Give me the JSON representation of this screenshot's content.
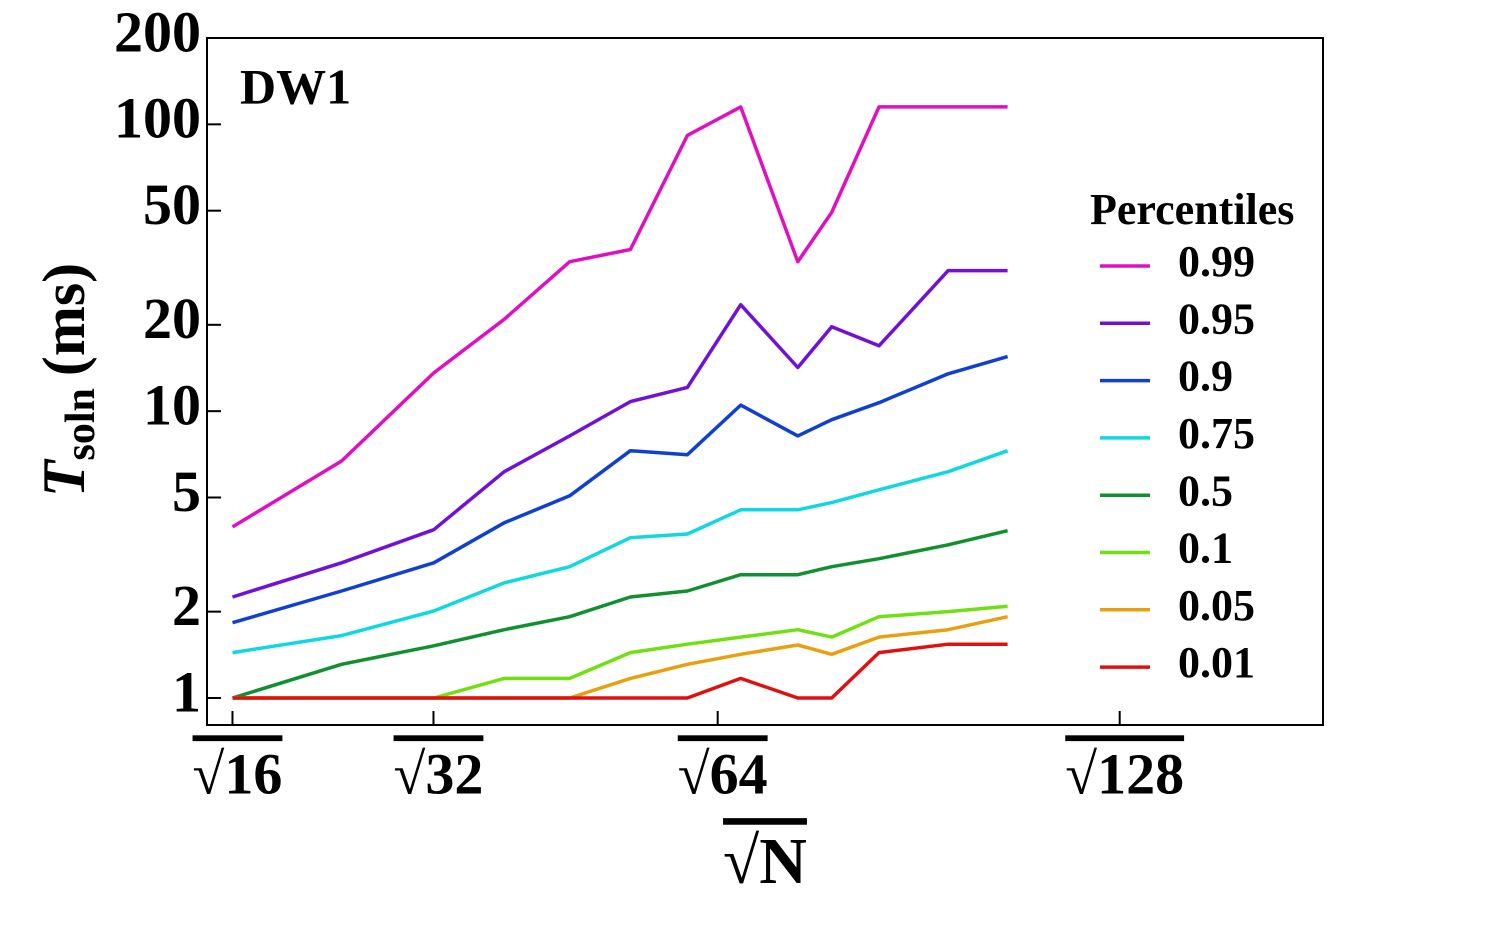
{
  "chart_data": {
    "type": "line",
    "annotation": "DW1",
    "ylabel": [
      "T",
      "soln",
      "(ms)"
    ],
    "xlabel": "√N",
    "legend_title": "Percentiles",
    "legend_position": "right",
    "log_y": true,
    "x": [
      4,
      4.9,
      5.66,
      6.24,
      6.78,
      7.28,
      7.75,
      8.19,
      8.66,
      8.94,
      9.33,
      9.9,
      10.39
    ],
    "xlim": [
      3.79,
      12.99
    ],
    "xticks": [
      {
        "value": 4,
        "label": "√16"
      },
      {
        "value": 5.657,
        "label": "√32"
      },
      {
        "value": 8,
        "label": "√64"
      },
      {
        "value": 11.314,
        "label": "√128"
      }
    ],
    "ylim": [
      0.805,
      200
    ],
    "yticks": [
      1,
      2,
      5,
      10,
      20,
      50,
      100,
      200
    ],
    "series": [
      {
        "name": "0.99",
        "color": "#e010c0",
        "values": [
          3.95,
          6.7,
          13.6,
          20.9,
          33.2,
          36.6,
          91.5,
          115,
          33.2,
          49.3,
          115,
          115,
          115
        ]
      },
      {
        "name": "0.95",
        "color": "#7010d8",
        "values": [
          2.25,
          2.96,
          3.86,
          6.15,
          8.2,
          10.8,
          12.1,
          23.5,
          14.2,
          19.7,
          16.9,
          30.9,
          30.9
        ]
      },
      {
        "name": "0.9",
        "color": "#1040d0",
        "values": [
          1.83,
          2.36,
          2.96,
          4.08,
          5.07,
          7.28,
          7.05,
          10.5,
          8.2,
          9.34,
          10.7,
          13.5,
          15.5
        ]
      },
      {
        "name": "0.75",
        "color": "#10d8e0",
        "values": [
          1.44,
          1.65,
          2.01,
          2.52,
          2.87,
          3.62,
          3.73,
          4.53,
          4.53,
          4.8,
          5.32,
          6.15,
          7.28
        ]
      },
      {
        "name": "0.5",
        "color": "#109030",
        "values": [
          1,
          1.31,
          1.52,
          1.73,
          1.92,
          2.25,
          2.36,
          2.69,
          2.69,
          2.87,
          3.06,
          3.42,
          3.83
        ]
      },
      {
        "name": "0.1",
        "color": "#70e010",
        "values": [
          1,
          1,
          1,
          1.17,
          1.17,
          1.44,
          1.54,
          1.63,
          1.73,
          1.63,
          1.92,
          2.0,
          2.09
        ]
      },
      {
        "name": "0.05",
        "color": "#e8a010",
        "values": [
          1,
          1,
          1,
          1,
          1,
          1.17,
          1.31,
          1.42,
          1.53,
          1.42,
          1.63,
          1.73,
          1.92
        ]
      },
      {
        "name": "0.01",
        "color": "#e01010",
        "values": [
          1,
          1,
          1,
          1,
          1,
          1,
          1,
          1.17,
          1,
          1,
          1.44,
          1.54,
          1.54
        ]
      }
    ]
  }
}
